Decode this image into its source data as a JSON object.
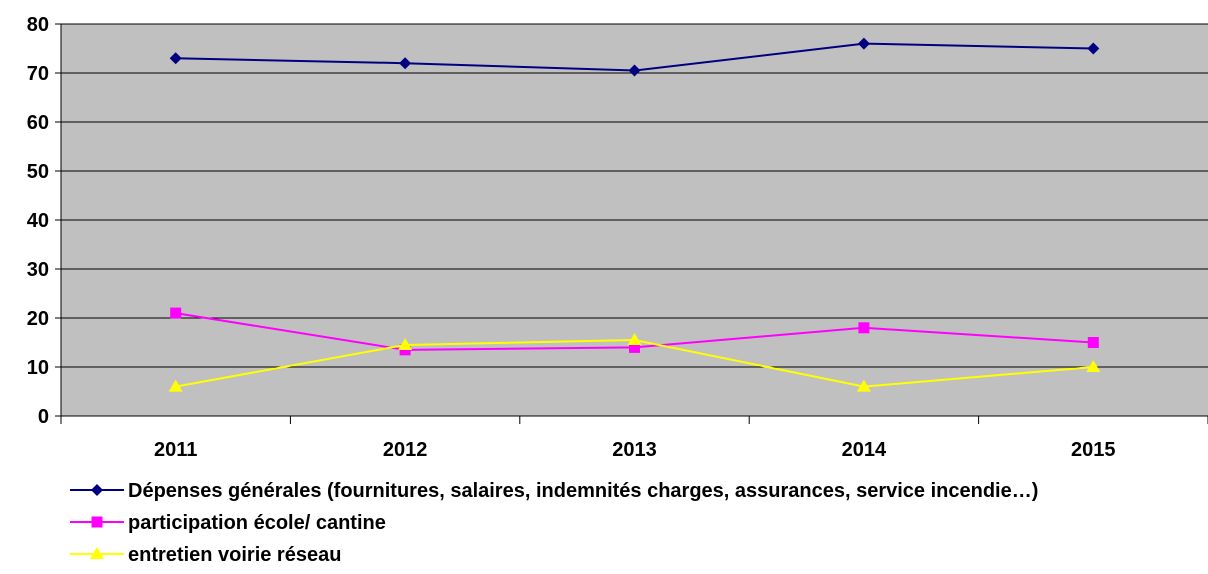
{
  "chart_data": {
    "type": "line",
    "categories": [
      "2011",
      "2012",
      "2013",
      "2014",
      "2015"
    ],
    "ylim": [
      0,
      80
    ],
    "yticks": [
      0,
      10,
      20,
      30,
      40,
      50,
      60,
      70,
      80
    ],
    "grid": true,
    "legend_position": "bottom",
    "plot_background": "#c0c0c0",
    "series": [
      {
        "name": "Dépenses générales (fournitures, salaires, indemnités charges, assurances, service incendie…)",
        "values": [
          73,
          72,
          70.5,
          76,
          75
        ],
        "color": "#000080",
        "marker": "diamond"
      },
      {
        "name": "participation école/ cantine",
        "values": [
          21,
          13.5,
          14,
          18,
          15
        ],
        "color": "#ff00ff",
        "marker": "square"
      },
      {
        "name": "entretien voirie réseau",
        "values": [
          6,
          14.5,
          15.5,
          6,
          10
        ],
        "color": "#ffff00",
        "marker": "triangle"
      }
    ]
  }
}
